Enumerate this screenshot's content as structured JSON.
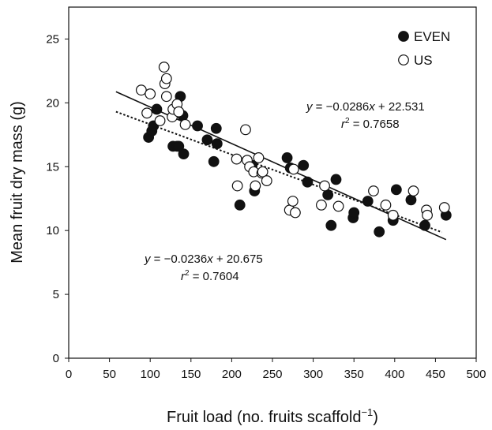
{
  "chart_data": {
    "type": "scatter",
    "xlabel": "Fruit load (no. fruits scaffold",
    "xlabel_sup": "−1",
    "xlabel_close": ")",
    "ylabel": "Mean fruit dry mass (g)",
    "xlim": [
      0,
      500
    ],
    "ylim": [
      0,
      27.5
    ],
    "xticks": [
      0,
      50,
      100,
      150,
      200,
      250,
      300,
      350,
      400,
      450,
      500
    ],
    "yticks": [
      0,
      5,
      10,
      15,
      20,
      25
    ],
    "grid": false,
    "legend_position": "top-right",
    "series": [
      {
        "name": "EVEN",
        "marker": "filled-circle",
        "points": [
          [
            98,
            17.3
          ],
          [
            102,
            17.8
          ],
          [
            104,
            18.2
          ],
          [
            108,
            19.5
          ],
          [
            128,
            16.6
          ],
          [
            133,
            16.6
          ],
          [
            135,
            16.6
          ],
          [
            137,
            20.5
          ],
          [
            140,
            19.0
          ],
          [
            141,
            16.0
          ],
          [
            158,
            18.2
          ],
          [
            170,
            17.1
          ],
          [
            178,
            15.4
          ],
          [
            181,
            18.0
          ],
          [
            182,
            16.8
          ],
          [
            210,
            12.0
          ],
          [
            225,
            15.1
          ],
          [
            228,
            13.1
          ],
          [
            268,
            15.7
          ],
          [
            272,
            14.9
          ],
          [
            288,
            15.1
          ],
          [
            293,
            13.8
          ],
          [
            318,
            12.8
          ],
          [
            322,
            10.4
          ],
          [
            328,
            14.0
          ],
          [
            349,
            11.0
          ],
          [
            350,
            11.4
          ],
          [
            367,
            12.3
          ],
          [
            381,
            9.9
          ],
          [
            398,
            10.8
          ],
          [
            402,
            13.2
          ],
          [
            420,
            12.4
          ],
          [
            437,
            10.4
          ],
          [
            463,
            11.2
          ]
        ],
        "fit": {
          "slope": -0.0286,
          "intercept": 22.531,
          "x_range": [
            58,
            463
          ],
          "style": "solid"
        }
      },
      {
        "name": "US",
        "marker": "open-circle",
        "points": [
          [
            89,
            21.0
          ],
          [
            96,
            19.2
          ],
          [
            100,
            20.7
          ],
          [
            112,
            18.6
          ],
          [
            117,
            22.8
          ],
          [
            118,
            21.5
          ],
          [
            120,
            21.9
          ],
          [
            120,
            20.5
          ],
          [
            127,
            18.9
          ],
          [
            128,
            19.5
          ],
          [
            133,
            19.9
          ],
          [
            135,
            19.3
          ],
          [
            143,
            18.3
          ],
          [
            206,
            15.6
          ],
          [
            207,
            13.5
          ],
          [
            217,
            17.9
          ],
          [
            219,
            15.5
          ],
          [
            222,
            15.0
          ],
          [
            227,
            14.6
          ],
          [
            229,
            13.5
          ],
          [
            233,
            15.7
          ],
          [
            237,
            14.5
          ],
          [
            238,
            14.6
          ],
          [
            243,
            13.9
          ],
          [
            271,
            11.6
          ],
          [
            275,
            12.3
          ],
          [
            276,
            14.8
          ],
          [
            278,
            11.4
          ],
          [
            310,
            12.0
          ],
          [
            314,
            13.5
          ],
          [
            331,
            11.9
          ],
          [
            374,
            13.1
          ],
          [
            389,
            12.0
          ],
          [
            398,
            11.2
          ],
          [
            423,
            13.1
          ],
          [
            439,
            11.6
          ],
          [
            440,
            11.2
          ],
          [
            461,
            11.8
          ]
        ],
        "fit": {
          "slope": -0.0236,
          "intercept": 20.675,
          "x_range": [
            58,
            458
          ],
          "style": "dotted"
        }
      }
    ],
    "annotations": {
      "even_eq": {
        "y": "y",
        "eq": " = −0.0286",
        "x": "x",
        "rest": " + 22.531",
        "r": "r",
        "r2sup": "2",
        "r2val": " = 0.7658"
      },
      "us_eq": {
        "y": "y",
        "eq": " =  −0.0236",
        "x": "x",
        "rest": " + 20.675",
        "r": "r",
        "r2sup": "2",
        "r2val": " = 0.7604"
      }
    }
  }
}
